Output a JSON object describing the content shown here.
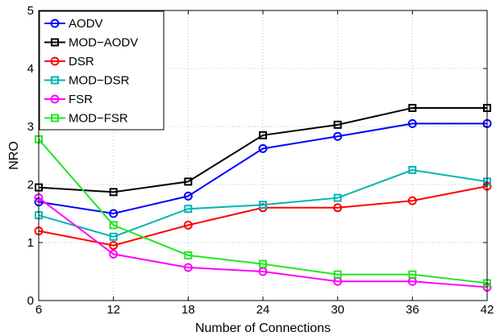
{
  "chart_data": {
    "type": "line",
    "title": "",
    "xlabel": "Number of Connections",
    "ylabel": "NRO",
    "x": [
      6,
      12,
      18,
      24,
      30,
      36,
      42
    ],
    "xlim": [
      6,
      42
    ],
    "ylim": [
      0,
      5
    ],
    "xticks": [
      6,
      12,
      18,
      24,
      30,
      36,
      42
    ],
    "yticks": [
      0,
      1,
      2,
      3,
      4,
      5
    ],
    "grid": true,
    "legend_position": "top-left",
    "series": [
      {
        "name": "AODV",
        "color": "#0000ff",
        "marker": "circle",
        "values": [
          1.7,
          1.5,
          1.8,
          2.62,
          2.83,
          3.05,
          3.05
        ]
      },
      {
        "name": "MOD−AODV",
        "color": "#000000",
        "marker": "square",
        "values": [
          1.95,
          1.87,
          2.05,
          2.85,
          3.03,
          3.32,
          3.32
        ]
      },
      {
        "name": "DSR",
        "color": "#ff0000",
        "marker": "circle",
        "values": [
          1.2,
          0.95,
          1.3,
          1.6,
          1.6,
          1.72,
          1.97
        ]
      },
      {
        "name": "MOD−DSR",
        "color": "#00b4b4",
        "marker": "square",
        "values": [
          1.47,
          1.1,
          1.58,
          1.65,
          1.77,
          2.25,
          2.05
        ]
      },
      {
        "name": "FSR",
        "color": "#ff00ff",
        "marker": "circle",
        "values": [
          1.77,
          0.8,
          0.57,
          0.5,
          0.33,
          0.33,
          0.23
        ]
      },
      {
        "name": "MOD−FSR",
        "color": "#22e622",
        "marker": "square",
        "values": [
          2.78,
          1.3,
          0.78,
          0.63,
          0.45,
          0.45,
          0.3
        ]
      }
    ]
  }
}
